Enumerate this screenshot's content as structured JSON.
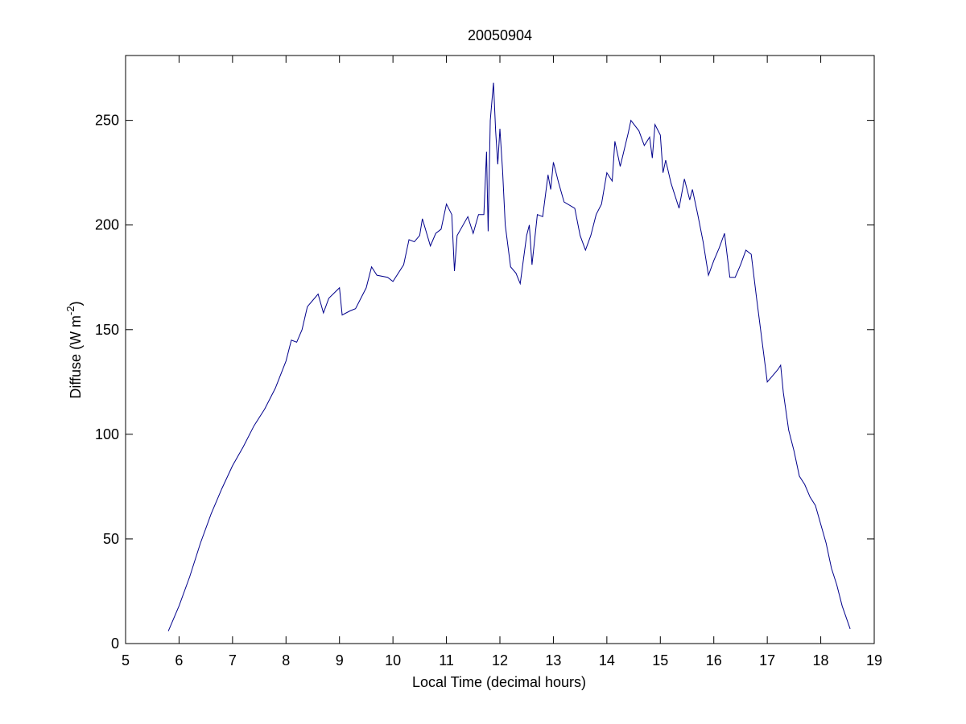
{
  "chart_data": {
    "type": "line",
    "title": "20050904",
    "xlabel": "Local Time (decimal hours)",
    "ylabel": {
      "text": "Diffuse (W m",
      "superscript": "-2",
      "suffix": ")"
    },
    "x": [
      5.8,
      6.0,
      6.2,
      6.4,
      6.6,
      6.8,
      7.0,
      7.2,
      7.4,
      7.6,
      7.8,
      8.0,
      8.1,
      8.2,
      8.3,
      8.4,
      8.5,
      8.6,
      8.7,
      8.8,
      9.0,
      9.05,
      9.2,
      9.3,
      9.5,
      9.6,
      9.7,
      9.9,
      10.0,
      10.2,
      10.3,
      10.4,
      10.5,
      10.55,
      10.7,
      10.8,
      10.9,
      11.0,
      11.1,
      11.15,
      11.2,
      11.4,
      11.5,
      11.6,
      11.7,
      11.75,
      11.78,
      11.82,
      11.88,
      11.92,
      11.96,
      12.0,
      12.05,
      12.1,
      12.2,
      12.3,
      12.38,
      12.5,
      12.55,
      12.6,
      12.7,
      12.8,
      12.9,
      12.95,
      13.0,
      13.1,
      13.2,
      13.4,
      13.5,
      13.6,
      13.7,
      13.8,
      13.9,
      14.0,
      14.1,
      14.15,
      14.25,
      14.4,
      14.45,
      14.6,
      14.7,
      14.8,
      14.85,
      14.9,
      15.0,
      15.05,
      15.1,
      15.2,
      15.35,
      15.45,
      15.55,
      15.6,
      15.7,
      15.8,
      15.9,
      16.0,
      16.1,
      16.2,
      16.3,
      16.4,
      16.5,
      16.6,
      16.7,
      16.8,
      16.9,
      17.0,
      17.1,
      17.2,
      17.25,
      17.3,
      17.4,
      17.5,
      17.6,
      17.7,
      17.8,
      17.9,
      18.0,
      18.1,
      18.2,
      18.3,
      18.4,
      18.55
    ],
    "series": [
      {
        "color": "#00008b",
        "values": [
          6,
          18,
          32,
          48,
          62,
          74,
          85,
          94,
          104,
          112,
          122,
          135,
          145,
          144,
          150,
          161,
          164,
          167,
          158,
          165,
          170,
          157,
          159,
          160,
          170,
          180,
          176,
          175,
          173,
          181,
          193,
          192,
          195,
          203,
          190,
          196,
          198,
          210,
          205,
          178,
          195,
          204,
          196,
          205,
          205,
          235,
          197,
          250,
          268,
          245,
          229,
          246,
          226,
          200,
          180,
          177,
          172,
          195,
          200,
          181,
          205,
          204,
          224,
          217,
          230,
          220,
          211,
          208,
          195,
          188,
          195,
          205,
          210,
          225,
          221,
          240,
          228,
          244,
          250,
          245,
          238,
          242,
          232,
          248,
          243,
          225,
          231,
          220,
          208,
          222,
          212,
          217,
          205,
          192,
          176,
          183,
          189,
          196,
          175,
          175,
          181,
          188,
          186,
          165,
          145,
          125,
          128,
          131,
          133,
          120,
          102,
          92,
          80,
          76,
          70,
          66,
          57,
          48,
          36,
          28,
          18,
          7
        ]
      }
    ],
    "xlim": [
      5,
      19
    ],
    "xticks": [
      5,
      6,
      7,
      8,
      9,
      10,
      11,
      12,
      13,
      14,
      15,
      16,
      17,
      18,
      19
    ],
    "ylim": [
      0,
      281
    ],
    "yticks": [
      0,
      50,
      100,
      150,
      200,
      250
    ]
  }
}
